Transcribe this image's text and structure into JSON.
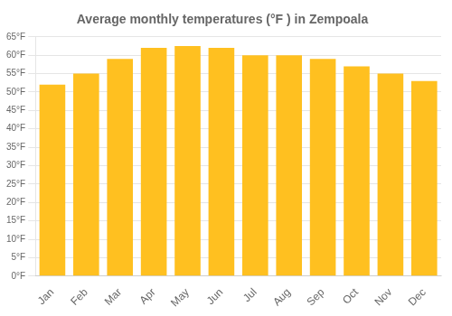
{
  "chart_data": {
    "type": "bar",
    "title": "Average monthly temperatures (°F ) in Zempoala",
    "categories": [
      "Jan",
      "Feb",
      "Mar",
      "Apr",
      "May",
      "Jun",
      "Jul",
      "Aug",
      "Sep",
      "Oct",
      "Nov",
      "Dec"
    ],
    "values": [
      52,
      55,
      59,
      62,
      62.5,
      62,
      60,
      60,
      59,
      57,
      55,
      53
    ],
    "color": "#FFC020",
    "ylim": [
      0,
      65
    ],
    "yticks": [
      {
        "value": 0,
        "label": "0°F"
      },
      {
        "value": 5,
        "label": "5°F"
      },
      {
        "value": 10,
        "label": "10°F"
      },
      {
        "value": 15,
        "label": "15°F"
      },
      {
        "value": 20,
        "label": "20°F"
      },
      {
        "value": 25,
        "label": "25°F"
      },
      {
        "value": 30,
        "label": "30°F"
      },
      {
        "value": 35,
        "label": "35°F"
      },
      {
        "value": 40,
        "label": "40°F"
      },
      {
        "value": 45,
        "label": "45°F"
      },
      {
        "value": 50,
        "label": "50°F"
      },
      {
        "value": 55,
        "label": "55°F"
      },
      {
        "value": 60,
        "label": "60°F"
      },
      {
        "value": 65,
        "label": "65°F"
      }
    ],
    "grid": true
  }
}
